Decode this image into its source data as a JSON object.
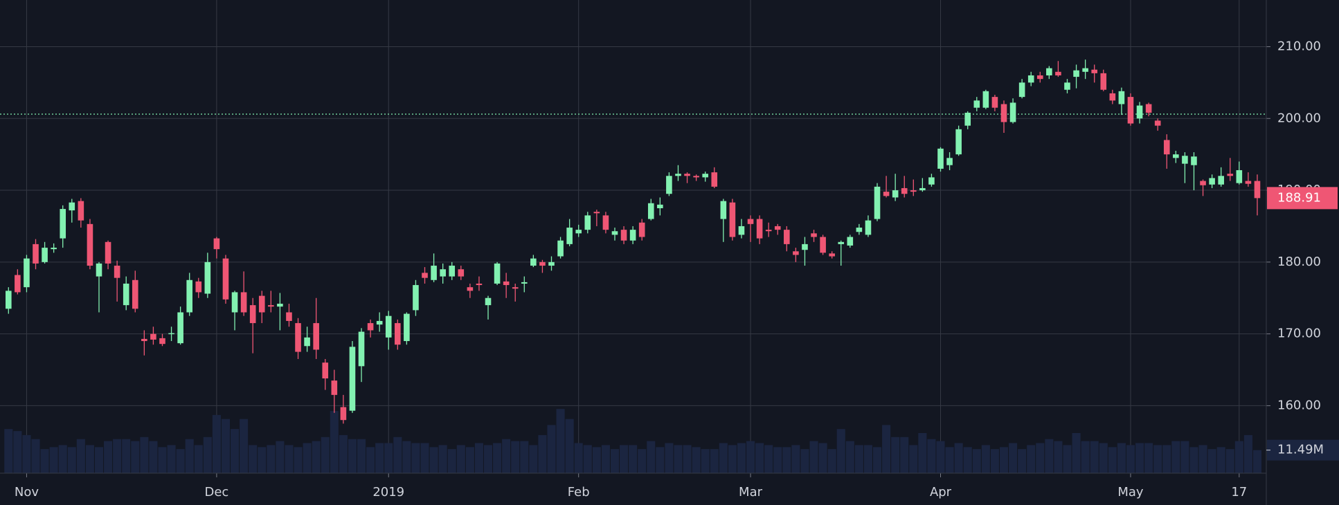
{
  "chart_data": {
    "type": "candlestick",
    "categories": [
      null,
      null,
      "Nov",
      null,
      null,
      null,
      null,
      null,
      null,
      null,
      null,
      null,
      null,
      null,
      null,
      null,
      null,
      null,
      null,
      null,
      null,
      null,
      null,
      "Dec",
      null,
      null,
      null,
      null,
      null,
      null,
      null,
      null,
      null,
      null,
      null,
      null,
      null,
      null,
      null,
      null,
      null,
      null,
      "2019",
      null,
      null,
      null,
      null,
      null,
      null,
      null,
      null,
      null,
      null,
      null,
      null,
      null,
      null,
      null,
      null,
      null,
      null,
      null,
      null,
      "Feb",
      null,
      null,
      null,
      null,
      null,
      null,
      null,
      null,
      null,
      null,
      null,
      null,
      null,
      null,
      null,
      null,
      null,
      null,
      "Mar",
      null,
      null,
      null,
      null,
      null,
      null,
      null,
      null,
      null,
      null,
      null,
      null,
      null,
      null,
      null,
      null,
      null,
      null,
      null,
      null,
      "Apr",
      null,
      null,
      null,
      null,
      null,
      null,
      null,
      null,
      null,
      null,
      null,
      null,
      null,
      null,
      null,
      null,
      null,
      null,
      null,
      null,
      "May",
      null,
      null,
      null,
      null,
      null,
      null,
      null,
      null,
      null,
      null,
      null,
      "17",
      null,
      null
    ],
    "open": [
      173.5,
      178.2,
      176.5,
      182.5,
      180,
      181.8,
      183.3,
      187.2,
      188.5,
      185.3,
      178,
      182.8,
      179.5,
      174,
      177.5,
      169.3,
      170,
      169.4,
      170,
      168.7,
      173,
      177.3,
      175.6,
      183.3,
      180.5,
      173,
      175.8,
      174,
      175.3,
      174,
      173.8,
      173,
      171.5,
      168.3,
      171.5,
      166,
      163.5,
      159.8,
      159.3,
      165.5,
      171.5,
      171.3,
      169.5,
      171.5,
      169,
      173.3,
      178.5,
      177.5,
      178,
      178,
      179,
      176.5,
      177,
      174,
      177,
      177.3,
      176.5,
      177,
      179.5,
      180,
      179.5,
      180.8,
      182.5,
      184,
      184.5,
      187,
      186.5,
      183.8,
      184.5,
      183,
      185.5,
      186,
      187.5,
      189.5,
      192,
      192.3,
      192,
      191.8,
      192.5,
      186,
      188.3,
      183.8,
      186,
      186,
      184.5,
      185,
      184.5,
      181.5,
      181.7,
      184,
      183.5,
      181.2,
      182.5,
      182.3,
      184.2,
      183.8,
      186,
      189.8,
      189,
      190.3,
      190,
      190,
      190.8,
      193,
      193.5,
      195,
      199,
      201.5,
      201.5,
      203,
      202,
      199.5,
      203,
      205,
      206,
      206,
      206.5,
      204,
      205.8,
      206.5,
      206.8,
      206.3,
      203.5,
      202,
      203,
      200,
      202,
      199.7,
      197,
      194.5,
      193.7,
      193.5,
      191.3,
      190.8,
      190.8,
      192.3,
      191,
      191.3,
      191.3
    ],
    "high": [
      176.5,
      179,
      181,
      183.2,
      182.8,
      182.6,
      187.9,
      188.8,
      188.9,
      186,
      180,
      183,
      180.2,
      178,
      178.8,
      170.5,
      171,
      170,
      171,
      173.8,
      178.5,
      177.8,
      181.3,
      183.5,
      181,
      176,
      178.7,
      175,
      176,
      176,
      175.7,
      174.2,
      172.2,
      171,
      175,
      166.5,
      165,
      161.5,
      169,
      170.8,
      172,
      173,
      173.2,
      172,
      173,
      177.5,
      179.3,
      181.2,
      179.8,
      180,
      179.5,
      177,
      178,
      175.3,
      180,
      178.5,
      177,
      178,
      181,
      180.3,
      180.8,
      183.5,
      186,
      185.2,
      187,
      187.3,
      187,
      184.8,
      185,
      185,
      186,
      188.8,
      189,
      192.5,
      193.5,
      192.5,
      192.2,
      192.6,
      193.2,
      188.8,
      188.8,
      186,
      186.5,
      186.5,
      185.5,
      185.3,
      185,
      182,
      183.5,
      184.5,
      183.8,
      181.5,
      183,
      183.8,
      185.3,
      186.5,
      191,
      192,
      192.3,
      192,
      191.5,
      191.7,
      192.3,
      196,
      195.3,
      199,
      201,
      203,
      204,
      203.3,
      202.5,
      202.8,
      205.5,
      206.5,
      206.5,
      207.3,
      208,
      205.5,
      207.5,
      208.2,
      207.5,
      206.8,
      204,
      204.3,
      203.5,
      202.3,
      202.2,
      200,
      197.8,
      195.5,
      195.3,
      195.3,
      191.5,
      192.2,
      193.2,
      194.5,
      194,
      192.5,
      192.2
    ],
    "low": [
      172.8,
      175.5,
      175.8,
      179,
      179.8,
      181.3,
      182,
      185.5,
      184.8,
      179,
      173,
      179,
      174.5,
      173.3,
      173,
      167,
      168.5,
      168.3,
      169,
      168.5,
      172.5,
      175,
      175,
      180.5,
      174.2,
      170.5,
      172.5,
      167.3,
      171.5,
      173,
      170.5,
      171,
      166.5,
      167.5,
      166.5,
      162.2,
      159,
      157.5,
      159,
      163.3,
      169.5,
      170.3,
      167.8,
      167.8,
      168.5,
      172.5,
      177,
      177.2,
      177,
      177.5,
      177.5,
      175,
      176,
      172,
      176.8,
      175,
      174.5,
      175.8,
      179.3,
      178.5,
      178.8,
      180.5,
      182.2,
      183.5,
      184,
      185,
      184,
      183,
      182.5,
      182.5,
      183,
      185.8,
      186.5,
      189.2,
      191.3,
      191,
      191.3,
      191.2,
      190.3,
      182.8,
      183,
      183.3,
      182.8,
      182.5,
      183.5,
      183.8,
      181.5,
      180,
      179.5,
      182.8,
      181,
      180.5,
      179.5,
      182,
      183.8,
      183.5,
      185.7,
      189,
      188.5,
      189,
      189.2,
      189.8,
      190.5,
      192.6,
      192.8,
      194.8,
      198.5,
      201,
      201.3,
      201,
      198,
      199.3,
      202.8,
      204.5,
      205,
      205.5,
      205.8,
      203.5,
      204.2,
      205.5,
      205,
      203.8,
      202,
      200.5,
      199,
      199.3,
      200.3,
      198.3,
      193,
      193.8,
      191,
      190,
      189.2,
      190.3,
      190.5,
      191.3,
      190.8,
      190.5,
      186.5
    ],
    "close": [
      176,
      175.8,
      180.5,
      179.8,
      182,
      182,
      187.4,
      188.3,
      185.8,
      179.5,
      179.8,
      179.8,
      177.8,
      177,
      173.5,
      169,
      169.2,
      168.6,
      170.1,
      173,
      177.5,
      175.8,
      180,
      181.8,
      174.8,
      175.8,
      173,
      171.5,
      173,
      173.8,
      174.2,
      171.8,
      167.5,
      169.5,
      167.8,
      163.8,
      161.5,
      158,
      168.2,
      170.3,
      170.5,
      171.8,
      172.5,
      168.5,
      172.8,
      176.8,
      177.8,
      179.5,
      179,
      179.5,
      178,
      176,
      176.8,
      175,
      179.8,
      176.8,
      176.3,
      177.2,
      180.5,
      179.5,
      180,
      183,
      184.8,
      184.5,
      186.5,
      186.8,
      184.5,
      184.3,
      183,
      184.5,
      183.5,
      188.2,
      188,
      192,
      192.3,
      192,
      191.8,
      192.3,
      190.5,
      188.5,
      183.5,
      185,
      185.3,
      183.3,
      184.3,
      184.5,
      182.5,
      181,
      182.5,
      183.5,
      181.3,
      180.8,
      182.8,
      183.5,
      184.8,
      185.8,
      190.5,
      189.2,
      190,
      189.5,
      189.8,
      190.3,
      191.8,
      195.8,
      194.5,
      198.5,
      200.8,
      202.5,
      203.8,
      201.5,
      199.5,
      202.2,
      205,
      206,
      205.5,
      207,
      206,
      205,
      206.7,
      207,
      206.3,
      204,
      202.5,
      203.8,
      199.3,
      201.8,
      200.8,
      199,
      195,
      195,
      194.8,
      194.7,
      190.7,
      191.7,
      192,
      192,
      192.8,
      190.9,
      188.91
    ],
    "volume": [
      22,
      21,
      19,
      17,
      12,
      13,
      14,
      13,
      17,
      14,
      13,
      16,
      17,
      17,
      16,
      18,
      16,
      13,
      14,
      12,
      17,
      14,
      18,
      29,
      27,
      22,
      27,
      14,
      13,
      14,
      16,
      14,
      13,
      15,
      16,
      18,
      31,
      19,
      17,
      17,
      13,
      15,
      15,
      18,
      16,
      15,
      15,
      13,
      14,
      12,
      14,
      13,
      15,
      14,
      15,
      17,
      16,
      16,
      14,
      19,
      24,
      32,
      27,
      15,
      14,
      13,
      14,
      12,
      14,
      14,
      12,
      16,
      13,
      15,
      14,
      14,
      13,
      12,
      12,
      15,
      14,
      15,
      16,
      15,
      14,
      13,
      13,
      14,
      12,
      16,
      15,
      12,
      22,
      16,
      14,
      14,
      13,
      24,
      18,
      18,
      14,
      20,
      17,
      16,
      13,
      15,
      13,
      12,
      14,
      12,
      13,
      15,
      12,
      14,
      15,
      17,
      16,
      14,
      20,
      16,
      16,
      15,
      13,
      15,
      14,
      15,
      15,
      14,
      14,
      16,
      16,
      13,
      14,
      12,
      13,
      12,
      16,
      19,
      11.49
    ],
    "volume_lim": [
      0,
      60
    ],
    "volume_label": {
      "value": 11.49,
      "label": "11.49M"
    },
    "last_price": {
      "value": 188.91,
      "label": "188.91"
    },
    "reference_line": 200.6,
    "ylim": [
      150.6,
      216.5
    ],
    "yticks": [
      {
        "value": 160,
        "label": "160.00"
      },
      {
        "value": 170,
        "label": "170.00"
      },
      {
        "value": 180,
        "label": "180.00"
      },
      {
        "value": 190,
        "label": "190.00"
      },
      {
        "value": 200,
        "label": "200.00"
      },
      {
        "value": 210,
        "label": "210.00"
      }
    ],
    "grid": true,
    "up_color": "#82f1b1",
    "down_color": "#ef5674",
    "volume_color": "#1b2540"
  }
}
